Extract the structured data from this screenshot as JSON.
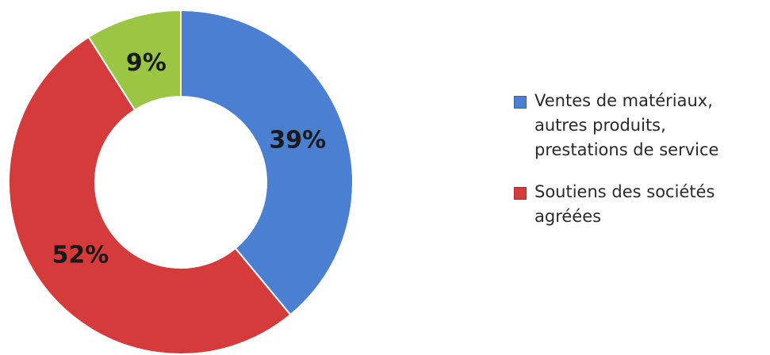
{
  "chart_data": {
    "type": "pie",
    "variant": "donut",
    "title": "",
    "categories": [
      "Ventes de matériaux,\nautres produits,\nprestations de service",
      "Soutiens des sociétés\nagréées",
      ""
    ],
    "values": [
      39,
      52,
      9
    ],
    "data_labels": [
      "39%",
      "52%",
      "9%"
    ],
    "colors": [
      "#4a7fd2",
      "#d63b3b",
      "#9bc643"
    ],
    "legend": {
      "placement": "right",
      "items": [
        {
          "label": "Ventes de matériaux,\nautres produits,\nprestations de service",
          "color": "#4a7fd2"
        },
        {
          "label": "Soutiens des sociétés\nagréées",
          "color": "#d63b3b"
        }
      ]
    }
  }
}
